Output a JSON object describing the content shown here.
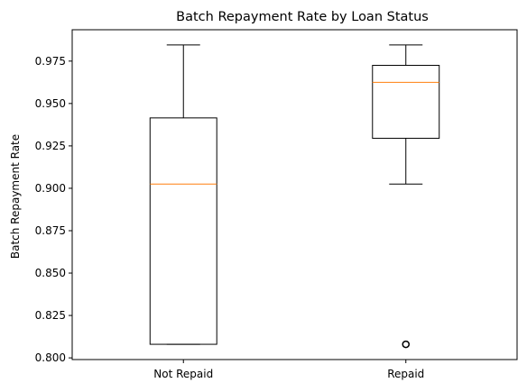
{
  "chart_data": {
    "type": "box",
    "title": "Batch Repayment Rate by Loan Status",
    "xlabel": "",
    "ylabel": "Batch Repayment Rate",
    "ylim": [
      0.799,
      0.9935
    ],
    "yticks": [
      "0.800",
      "0.825",
      "0.850",
      "0.875",
      "0.900",
      "0.925",
      "0.950",
      "0.975"
    ],
    "categories": [
      "Not Repaid",
      "Repaid"
    ],
    "boxes": [
      {
        "name": "Not Repaid",
        "whisker_low": 0.808,
        "q1": 0.808,
        "median": 0.9025,
        "q3": 0.9415,
        "whisker_high": 0.9845,
        "outliers": []
      },
      {
        "name": "Repaid",
        "whisker_low": 0.9025,
        "q1": 0.9295,
        "median": 0.9625,
        "q3": 0.9725,
        "whisker_high": 0.9845,
        "outliers": [
          0.808
        ]
      }
    ],
    "colors": {
      "box": "#000000",
      "median": "#ff7f0e",
      "outlier": "#000000"
    },
    "grid": false
  }
}
